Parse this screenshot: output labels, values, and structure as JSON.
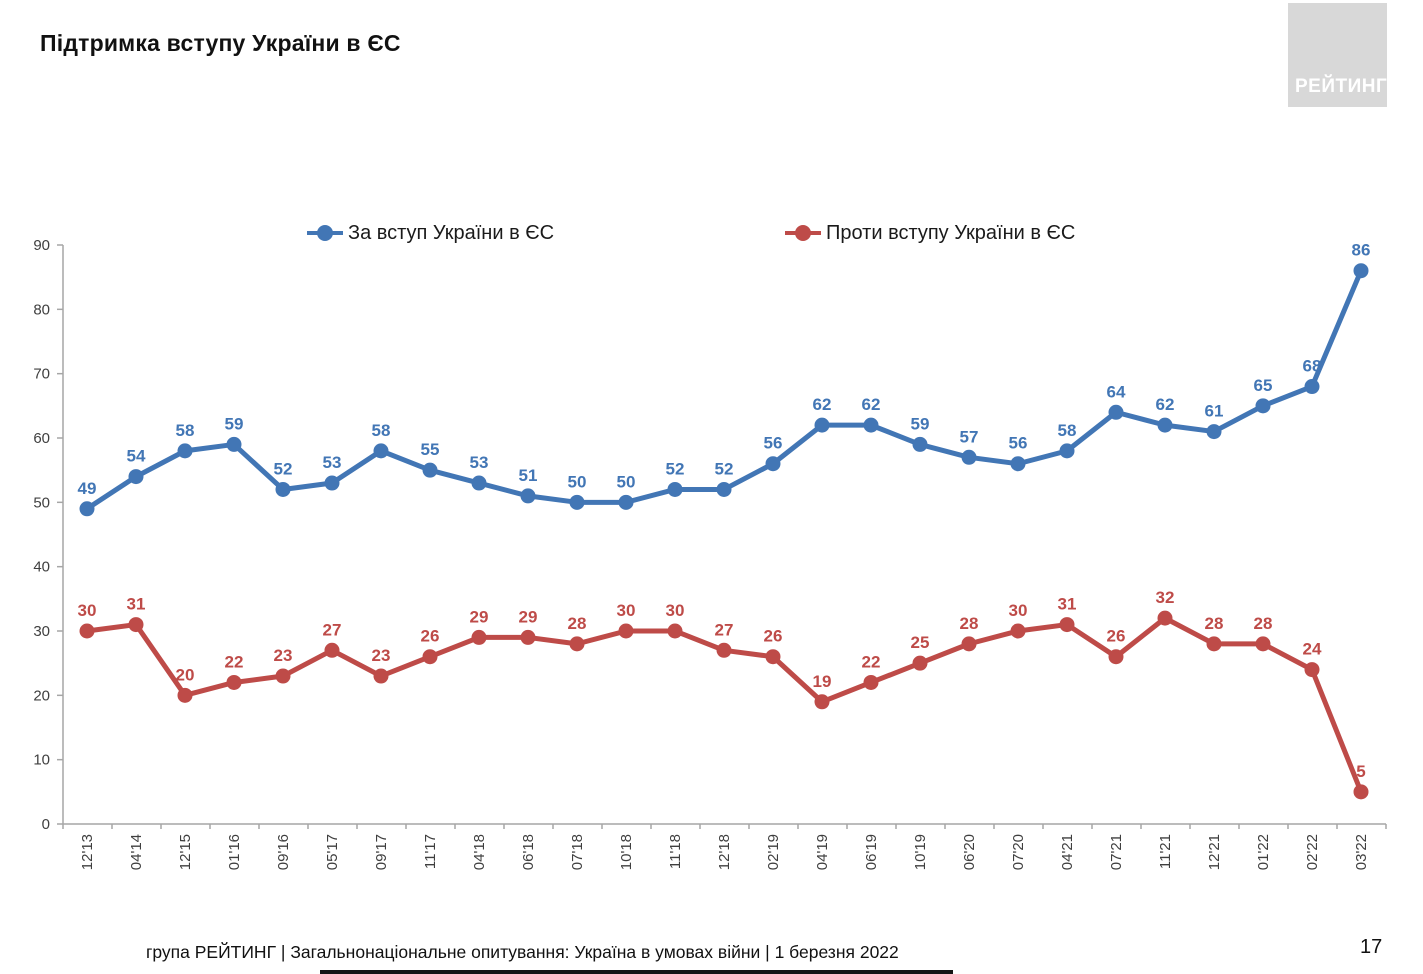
{
  "page": {
    "title": "Підтримка вступу України в ЄС",
    "logo_text": "РЕЙТИНГ",
    "footer": "група РЕЙТИНГ | Загальнонаціональне опитування: Україна в умовах війни | 1 березня 2022",
    "page_number": "17"
  },
  "colors": {
    "support": "#4276b5",
    "against": "#be4b48",
    "axis": "#a6a6a6",
    "tick_label": "#3f3f3f"
  },
  "chart_data": {
    "type": "line",
    "title": "Підтримка вступу України в ЄС",
    "categories": [
      "12'13",
      "04'14",
      "12'15",
      "01'16",
      "09'16",
      "05'17",
      "09'17",
      "11'17",
      "04'18",
      "06'18",
      "07'18",
      "10'18",
      "11'18",
      "12'18",
      "02'19",
      "04'19",
      "06'19",
      "10'19",
      "06'20",
      "07'20",
      "04'21",
      "07'21",
      "11'21",
      "12'21",
      "01'22",
      "02'22",
      "03'22"
    ],
    "series": [
      {
        "name": "За вступ України в ЄС",
        "color": "#4276b5",
        "values": [
          49,
          54,
          58,
          59,
          52,
          53,
          58,
          55,
          53,
          51,
          50,
          50,
          52,
          52,
          56,
          62,
          62,
          59,
          57,
          56,
          58,
          64,
          62,
          61,
          65,
          68,
          86
        ]
      },
      {
        "name": "Проти вступу України в ЄС",
        "color": "#be4b48",
        "values": [
          30,
          31,
          20,
          22,
          23,
          27,
          23,
          26,
          29,
          29,
          28,
          30,
          30,
          27,
          26,
          19,
          22,
          25,
          28,
          30,
          31,
          26,
          32,
          28,
          28,
          24,
          5
        ]
      }
    ],
    "ylim": [
      0,
      90
    ],
    "yticks": [
      0,
      10,
      20,
      30,
      40,
      50,
      60,
      70,
      80,
      90
    ],
    "grid": false,
    "legend_position": "top",
    "data_labels": true
  }
}
